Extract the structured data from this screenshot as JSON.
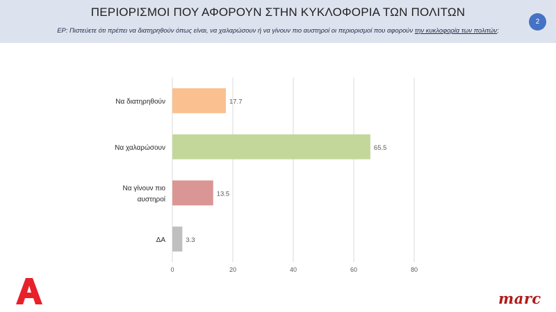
{
  "header": {
    "title": "ΠΕΡΙΟΡΙΣΜΟΙ ΠΟΥ ΑΦΟΡΟΥΝ ΣΤΗΝ ΚΥΚΛΟΦΟΡΙΑ ΤΩΝ ΠΟΛΙΤΩΝ",
    "question_prefix": "ΕΡ:  Πιστεύετε ότι πρέπει  να διατηρηθούν όπως είναι, να χαλαρώσουν ή να γίνουν πιο αυστηροί  οι περιορισμοί που αφορούν ",
    "question_emphasis": "την κυκλοφορία των πολιτών",
    "question_suffix": ";",
    "page_number": "2"
  },
  "logos": {
    "alpha": "A",
    "marc": "marc"
  },
  "colors": {
    "header_bg": "#dde3ee",
    "badge": "#4472c4",
    "marc": "#b01a1a",
    "alpha": "#e8202a"
  },
  "chart_data": {
    "type": "bar",
    "orientation": "horizontal",
    "categories": [
      [
        "Να διατηρηθούν"
      ],
      [
        "Να χαλαρώσουν"
      ],
      [
        "Να γίνουν πιο",
        "αυστηροί"
      ],
      [
        "ΔΑ"
      ]
    ],
    "values": [
      17.7,
      65.5,
      13.5,
      3.3
    ],
    "value_labels": [
      "17.7",
      "65.5",
      "13.5",
      "3.3"
    ],
    "colors": [
      "#fac090",
      "#c4d79b",
      "#da9694",
      "#bfbfbf"
    ],
    "xlim": [
      0,
      80
    ],
    "xticks": [
      0,
      20,
      40,
      60,
      80
    ],
    "grid": true,
    "legend": "none"
  }
}
